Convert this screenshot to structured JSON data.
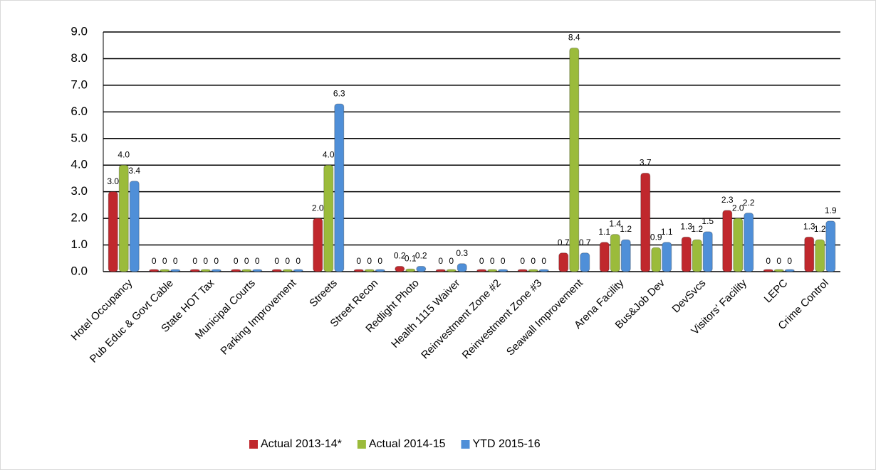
{
  "chart_data": {
    "type": "bar",
    "categories": [
      "Hotel Occupancy",
      "Pub Educ & Govt Cable",
      "State HOT Tax",
      "Municipal Courts",
      "Parking Improvement",
      "Streets",
      "Street Recon",
      "Redlight Photo",
      "Health 1115 Waiver",
      "Reinvestment Zone #2",
      "Reinvestment Zone #3",
      "Seawall Improvement",
      "Arena Facility",
      "Bus&Job Dev",
      "DevSvcs",
      "Visitors' Facility",
      "LEPC",
      "Crime Control"
    ],
    "series": [
      {
        "name": "Actual 2013-14*",
        "color": "#c0282d",
        "values": [
          3.0,
          0,
          0,
          0,
          0,
          2.0,
          0,
          0.2,
          0,
          0,
          0,
          0.7,
          1.1,
          3.7,
          1.3,
          2.3,
          0,
          1.3
        ],
        "value_labels": [
          "3.0",
          "0",
          "0",
          "0",
          "0",
          "2.0",
          "0",
          "0.2",
          "0",
          "0",
          "0",
          "0.7",
          "1.1",
          "3.7",
          "1.3",
          "2.3",
          "0",
          "1.3"
        ]
      },
      {
        "name": "Actual 2014-15",
        "color": "#9bbb3b",
        "values": [
          4.0,
          0,
          0,
          0,
          0,
          4.0,
          0,
          0.1,
          0,
          0,
          0,
          8.4,
          1.4,
          0.9,
          1.2,
          2.0,
          0,
          1.2
        ],
        "value_labels": [
          "4.0",
          "0",
          "0",
          "0",
          "0",
          "4.0",
          "0",
          "0.1",
          "0",
          "0",
          "0",
          "8.4",
          "1.4",
          "0.9",
          "1.2",
          "2.0",
          "0",
          "1.2"
        ]
      },
      {
        "name": "YTD 2015-16",
        "color": "#4f8fd8",
        "values": [
          3.4,
          0,
          0,
          0,
          0,
          6.3,
          0,
          0.2,
          0.3,
          0,
          0,
          0.7,
          1.2,
          1.1,
          1.5,
          2.2,
          0,
          1.9
        ],
        "value_labels": [
          "3.4",
          "0",
          "0",
          "0",
          "0",
          "6.3",
          "0",
          "0.2",
          "0.3",
          "0",
          "0",
          "0.7",
          "1.2",
          "1.1",
          "1.5",
          "2.2",
          "0",
          "1.9"
        ]
      }
    ],
    "ylim": [
      0,
      9
    ],
    "yticks": [
      {
        "value": 0,
        "label": "0.0"
      },
      {
        "value": 1,
        "label": "1.0"
      },
      {
        "value": 2,
        "label": "2.0"
      },
      {
        "value": 3,
        "label": "3.0"
      },
      {
        "value": 4,
        "label": "4.0"
      },
      {
        "value": 5,
        "label": "5.0"
      },
      {
        "value": 6,
        "label": "6.0"
      },
      {
        "value": 7,
        "label": "7.0"
      },
      {
        "value": 8,
        "label": "8.0"
      },
      {
        "value": 9,
        "label": "9.0"
      }
    ],
    "grid": true,
    "legend": "bottom"
  }
}
